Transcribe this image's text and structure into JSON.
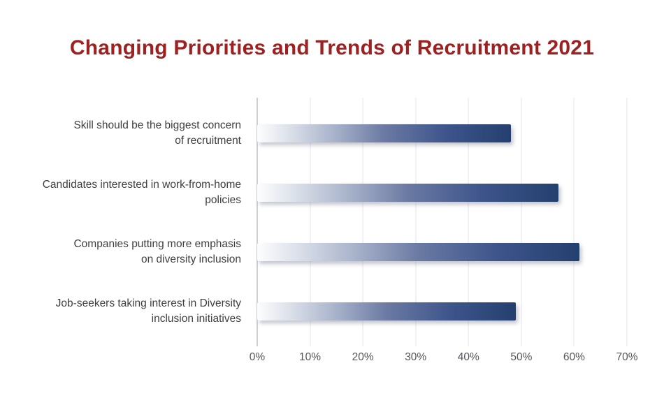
{
  "chart_data": {
    "type": "bar",
    "orientation": "horizontal",
    "title": "Changing Priorities and Trends of Recruitment 2021",
    "categories": [
      "Skill should be the biggest concern\nof recruitment",
      "Candidates interested in work-from-home\npolicies",
      "Companies putting more emphasis\non diversity inclusion",
      "Job-seekers taking interest in Diversity\ninclusion initiatives"
    ],
    "values": [
      48,
      57,
      61,
      49
    ],
    "unit": "%",
    "xlabel": "",
    "ylabel": "",
    "xlim": [
      0,
      70
    ],
    "x_ticks": [
      "0%",
      "10%",
      "20%",
      "30%",
      "40%",
      "50%",
      "60%",
      "70%"
    ],
    "grid": "vertical-gridlines-on",
    "legend": false,
    "colors": {
      "background": "#FFFFFF",
      "title_text": "#9E2121",
      "bar_gradient_start": "#FFFFFF",
      "bar_gradient_mid": "#6B7AA3",
      "bar_gradient_end": "#24406F",
      "category_label_text": "#3E3E40",
      "tick_label_text": "#54555D",
      "gridline": "#E4E4E9",
      "zero_axis_line": "#9A99B4"
    }
  }
}
